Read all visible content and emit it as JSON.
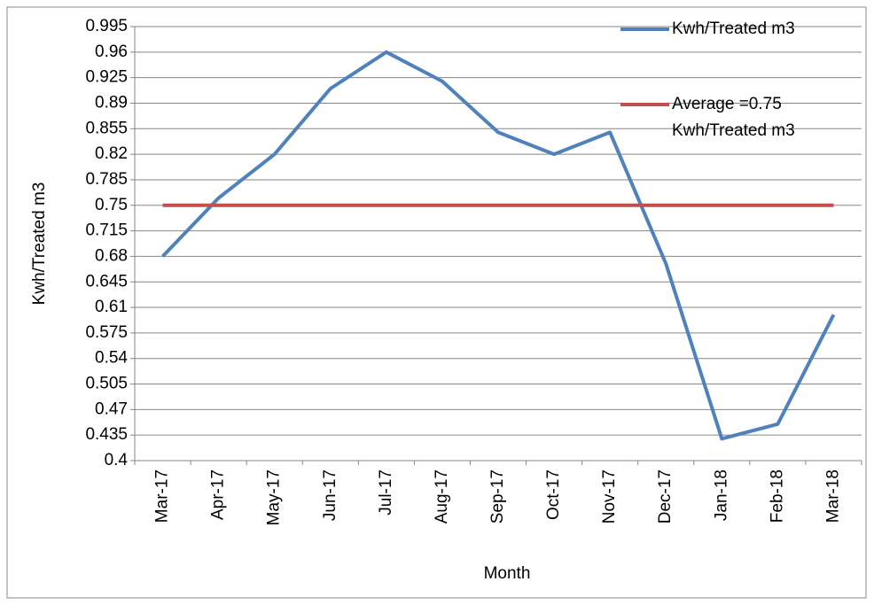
{
  "chart_data": {
    "type": "line",
    "x_label": "Month",
    "y_label": "Kwh/Treated m3",
    "categories": [
      "Mar-17",
      "Apr-17",
      "May-17",
      "Jun-17",
      "Jul-17",
      "Aug-17",
      "Sep-17",
      "Oct-17",
      "Nov-17",
      "Dec-17",
      "Jan-18",
      "Feb-18",
      "Mar-18"
    ],
    "series": [
      {
        "name": "Kwh/Treated m3",
        "color": "#4f81bd",
        "values": [
          0.68,
          0.76,
          0.82,
          0.91,
          0.96,
          0.92,
          0.85,
          0.82,
          0.85,
          0.67,
          0.43,
          0.45,
          0.6
        ]
      },
      {
        "name": "Average =0.75 Kwh/Treated m3",
        "color": "#c0504d",
        "values": [
          0.75,
          0.75,
          0.75,
          0.75,
          0.75,
          0.75,
          0.75,
          0.75,
          0.75,
          0.75,
          0.75,
          0.75,
          0.75
        ]
      }
    ],
    "ylim": [
      0.4,
      0.995
    ],
    "yticks": [
      0.4,
      0.435,
      0.47,
      0.505,
      0.54,
      0.575,
      0.61,
      0.645,
      0.68,
      0.715,
      0.75,
      0.785,
      0.82,
      0.855,
      0.89,
      0.925,
      0.96,
      0.995
    ],
    "grid": true,
    "legend": "upper right"
  }
}
